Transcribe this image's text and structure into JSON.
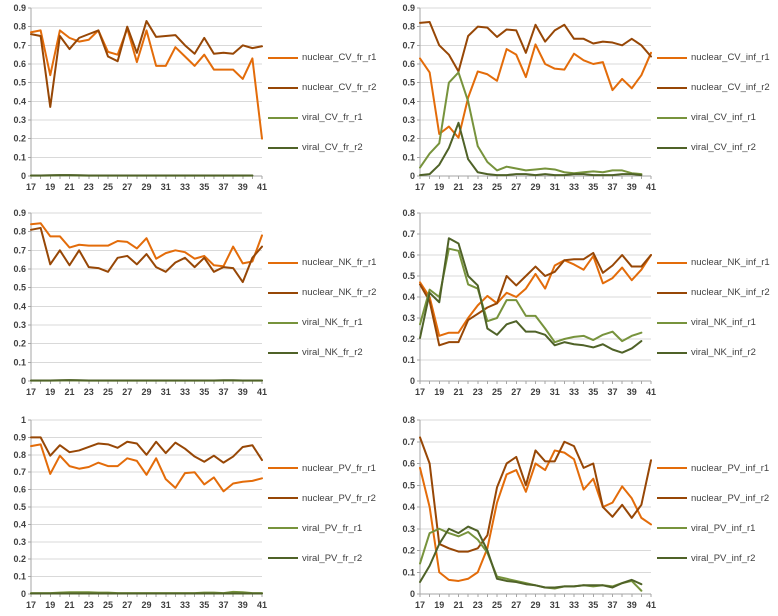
{
  "palette": {
    "nuclear_r1": "#E36C0A",
    "nuclear_r2": "#974706",
    "viral_r1": "#77933C",
    "viral_r2": "#4F6228"
  },
  "axis_style": {
    "grid_color": "#D9D9D9",
    "axis_color": "#A6A6A6",
    "label_color": "#3F3F3F"
  },
  "chart_data": [
    {
      "name": "CV_fr",
      "type": "line",
      "grid": true,
      "legend_position": "right",
      "x_start": 17,
      "x_labels": [
        "17",
        "19",
        "21",
        "23",
        "25",
        "27",
        "29",
        "31",
        "33",
        "35",
        "37",
        "39",
        "41"
      ],
      "ylim": [
        0,
        0.9
      ],
      "ytick_step": 0.1,
      "series": [
        {
          "name": "nuclear_CV_fr_r1",
          "color_key": "nuclear_r1",
          "values": [
            0.77,
            0.78,
            0.54,
            0.78,
            0.74,
            0.72,
            0.73,
            0.78,
            0.665,
            0.65,
            0.79,
            0.61,
            0.78,
            0.59,
            0.59,
            0.69,
            0.64,
            0.59,
            0.65,
            0.57,
            0.57,
            0.57,
            0.52,
            0.63,
            0.2
          ]
        },
        {
          "name": "nuclear_CV_fr_r2",
          "color_key": "nuclear_r2",
          "values": [
            0.76,
            0.75,
            0.37,
            0.75,
            0.68,
            0.74,
            0.76,
            0.78,
            0.64,
            0.615,
            0.8,
            0.66,
            0.83,
            0.745,
            0.75,
            0.755,
            0.7,
            0.655,
            0.74,
            0.655,
            0.66,
            0.655,
            0.7,
            0.685,
            0.695
          ]
        },
        {
          "name": "viral_CV_fr_r1",
          "color_key": "viral_r1",
          "values": [
            0.002,
            0.002,
            0.003,
            0.004,
            0.004,
            0.003,
            0.002,
            0.002,
            0.002,
            0.002,
            0.002,
            0.002,
            0.002,
            0.002,
            0.002,
            0.002,
            0.002,
            0.002,
            0.002,
            0.002,
            0.002,
            0.002,
            0.002,
            0.002
          ]
        },
        {
          "name": "viral_CV_fr_r2",
          "color_key": "viral_r2",
          "values": [
            0.003,
            0.003,
            0.004,
            0.005,
            0.005,
            0.004,
            0.003,
            0.003,
            0.003,
            0.003,
            0.003,
            0.003,
            0.003,
            0.003,
            0.003,
            0.003,
            0.003,
            0.003,
            0.003,
            0.003,
            0.003,
            0.003,
            0.003,
            0.003
          ]
        }
      ]
    },
    {
      "name": "CV_inf",
      "type": "line",
      "grid": true,
      "legend_position": "right",
      "x_start": 17,
      "x_labels": [
        "17",
        "19",
        "21",
        "23",
        "25",
        "27",
        "29",
        "31",
        "33",
        "35",
        "37",
        "39",
        "41"
      ],
      "ylim": [
        0,
        0.9
      ],
      "ytick_step": 0.1,
      "series": [
        {
          "name": "nuclear_CV_inf_r1",
          "color_key": "nuclear_r1",
          "values": [
            0.63,
            0.555,
            0.225,
            0.265,
            0.205,
            0.42,
            0.56,
            0.545,
            0.51,
            0.68,
            0.65,
            0.53,
            0.705,
            0.6,
            0.575,
            0.57,
            0.655,
            0.62,
            0.6,
            0.61,
            0.46,
            0.52,
            0.47,
            0.54,
            0.66
          ]
        },
        {
          "name": "nuclear_CV_inf_r2",
          "color_key": "nuclear_r2",
          "values": [
            0.82,
            0.825,
            0.7,
            0.65,
            0.56,
            0.75,
            0.8,
            0.795,
            0.745,
            0.785,
            0.78,
            0.66,
            0.81,
            0.72,
            0.78,
            0.81,
            0.735,
            0.735,
            0.71,
            0.72,
            0.715,
            0.7,
            0.735,
            0.7,
            0.64
          ]
        },
        {
          "name": "viral_CV_inf_r1",
          "color_key": "viral_r1",
          "values": [
            0.045,
            0.12,
            0.175,
            0.5,
            0.555,
            0.4,
            0.16,
            0.075,
            0.03,
            0.05,
            0.04,
            0.03,
            0.035,
            0.04,
            0.035,
            0.02,
            0.015,
            0.02,
            0.025,
            0.02,
            0.03,
            0.03,
            0.015,
            0.01
          ]
        },
        {
          "name": "viral_CV_inf_r2",
          "color_key": "viral_r2",
          "values": [
            0.005,
            0.01,
            0.06,
            0.15,
            0.285,
            0.09,
            0.02,
            0.01,
            0.005,
            0.005,
            0.01,
            0.01,
            0.005,
            0.01,
            0.005,
            0.005,
            0.01,
            0.01,
            0.005,
            0.005,
            0.005,
            0.01,
            0.01,
            0.005
          ]
        }
      ]
    },
    {
      "name": "NK_fr",
      "type": "line",
      "grid": true,
      "legend_position": "right",
      "x_start": 17,
      "x_labels": [
        "17",
        "19",
        "21",
        "23",
        "25",
        "27",
        "29",
        "31",
        "33",
        "35",
        "37",
        "39",
        "41"
      ],
      "ylim": [
        0,
        0.9
      ],
      "ytick_step": 0.1,
      "series": [
        {
          "name": "nuclear_NK_fr_r1",
          "color_key": "nuclear_r1",
          "values": [
            0.84,
            0.845,
            0.775,
            0.775,
            0.715,
            0.73,
            0.725,
            0.725,
            0.725,
            0.75,
            0.745,
            0.71,
            0.765,
            0.655,
            0.685,
            0.7,
            0.69,
            0.655,
            0.67,
            0.62,
            0.615,
            0.72,
            0.63,
            0.64,
            0.78
          ]
        },
        {
          "name": "nuclear_NK_fr_r2",
          "color_key": "nuclear_r2",
          "values": [
            0.81,
            0.82,
            0.625,
            0.7,
            0.62,
            0.7,
            0.61,
            0.605,
            0.585,
            0.66,
            0.67,
            0.625,
            0.68,
            0.61,
            0.585,
            0.635,
            0.66,
            0.61,
            0.66,
            0.585,
            0.61,
            0.605,
            0.53,
            0.66,
            0.72
          ]
        },
        {
          "name": "viral_NK_fr_r1",
          "color_key": "viral_r1",
          "values": [
            0.002,
            0.002,
            0.002,
            0.003,
            0.004,
            0.003,
            0.002,
            0.002,
            0.002,
            0.002,
            0.002,
            0.002,
            0.002,
            0.002,
            0.002,
            0.002,
            0.002,
            0.002,
            0.002,
            0.002,
            0.003,
            0.003,
            0.002,
            0.002,
            0.002
          ]
        },
        {
          "name": "viral_NK_fr_r2",
          "color_key": "viral_r2",
          "values": [
            0.003,
            0.003,
            0.003,
            0.004,
            0.005,
            0.004,
            0.003,
            0.003,
            0.003,
            0.003,
            0.003,
            0.003,
            0.003,
            0.003,
            0.003,
            0.003,
            0.003,
            0.003,
            0.003,
            0.003,
            0.004,
            0.004,
            0.003,
            0.003,
            0.003
          ]
        }
      ]
    },
    {
      "name": "NK_inf",
      "type": "line",
      "grid": true,
      "legend_position": "right",
      "x_start": 17,
      "x_labels": [
        "17",
        "19",
        "21",
        "23",
        "25",
        "27",
        "29",
        "31",
        "33",
        "35",
        "37",
        "39",
        "41"
      ],
      "ylim": [
        0,
        0.8
      ],
      "ytick_step": 0.1,
      "series": [
        {
          "name": "nuclear_NK_inf_r1",
          "color_key": "nuclear_r1",
          "values": [
            0.47,
            0.4,
            0.215,
            0.23,
            0.23,
            0.3,
            0.36,
            0.405,
            0.37,
            0.42,
            0.4,
            0.44,
            0.51,
            0.44,
            0.55,
            0.575,
            0.555,
            0.53,
            0.595,
            0.465,
            0.49,
            0.54,
            0.48,
            0.53,
            0.6
          ]
        },
        {
          "name": "nuclear_NK_inf_r2",
          "color_key": "nuclear_r2",
          "values": [
            0.46,
            0.38,
            0.17,
            0.185,
            0.185,
            0.29,
            0.32,
            0.35,
            0.37,
            0.5,
            0.455,
            0.5,
            0.545,
            0.5,
            0.52,
            0.575,
            0.58,
            0.58,
            0.61,
            0.515,
            0.55,
            0.6,
            0.545,
            0.545,
            0.6
          ]
        },
        {
          "name": "viral_NK_inf_r1",
          "color_key": "viral_r1",
          "values": [
            0.27,
            0.435,
            0.4,
            0.63,
            0.62,
            0.46,
            0.44,
            0.285,
            0.3,
            0.385,
            0.385,
            0.31,
            0.31,
            0.25,
            0.185,
            0.2,
            0.21,
            0.215,
            0.195,
            0.22,
            0.235,
            0.19,
            0.215,
            0.23
          ]
        },
        {
          "name": "viral_NK_inf_r2",
          "color_key": "viral_r2",
          "values": [
            0.205,
            0.42,
            0.375,
            0.68,
            0.655,
            0.5,
            0.455,
            0.25,
            0.22,
            0.27,
            0.285,
            0.235,
            0.235,
            0.22,
            0.17,
            0.185,
            0.175,
            0.17,
            0.16,
            0.175,
            0.15,
            0.135,
            0.155,
            0.19
          ]
        }
      ]
    },
    {
      "name": "PV_fr",
      "type": "line",
      "grid": true,
      "legend_position": "right",
      "x_start": 17,
      "x_labels": [
        "17",
        "19",
        "21",
        "23",
        "25",
        "27",
        "29",
        "31",
        "33",
        "35",
        "37",
        "39",
        "41"
      ],
      "ylim": [
        0,
        1
      ],
      "ytick_step": 0.1,
      "series": [
        {
          "name": "nuclear_PV_fr_r1",
          "color_key": "nuclear_r1",
          "values": [
            0.85,
            0.86,
            0.69,
            0.795,
            0.735,
            0.72,
            0.73,
            0.755,
            0.735,
            0.735,
            0.78,
            0.765,
            0.685,
            0.78,
            0.66,
            0.61,
            0.695,
            0.7,
            0.63,
            0.67,
            0.59,
            0.635,
            0.645,
            0.65,
            0.665
          ]
        },
        {
          "name": "nuclear_PV_fr_r2",
          "color_key": "nuclear_r2",
          "values": [
            0.9,
            0.9,
            0.795,
            0.855,
            0.815,
            0.825,
            0.845,
            0.865,
            0.86,
            0.84,
            0.875,
            0.865,
            0.8,
            0.875,
            0.81,
            0.87,
            0.835,
            0.79,
            0.76,
            0.795,
            0.755,
            0.79,
            0.845,
            0.855,
            0.77
          ]
        },
        {
          "name": "viral_PV_fr_r1",
          "color_key": "viral_r1",
          "values": [
            0.005,
            0.005,
            0.005,
            0.008,
            0.01,
            0.01,
            0.01,
            0.008,
            0.008,
            0.005,
            0.005,
            0.005,
            0.005,
            0.005,
            0.005,
            0.005,
            0.005,
            0.005,
            0.008,
            0.008,
            0.005,
            0.012,
            0.01,
            0.005,
            0.005
          ]
        },
        {
          "name": "viral_PV_fr_r2",
          "color_key": "viral_r2",
          "values": [
            0.003,
            0.003,
            0.003,
            0.003,
            0.003,
            0.003,
            0.003,
            0.003,
            0.003,
            0.003,
            0.003,
            0.003,
            0.003,
            0.003,
            0.003,
            0.003,
            0.003,
            0.003,
            0.003,
            0.003,
            0.003,
            0.003,
            0.003,
            0.003,
            0.003
          ]
        }
      ]
    },
    {
      "name": "PV_inf",
      "type": "line",
      "grid": true,
      "legend_position": "right",
      "x_start": 17,
      "x_labels": [
        "17",
        "19",
        "21",
        "23",
        "25",
        "27",
        "29",
        "31",
        "33",
        "35",
        "37",
        "39",
        "41"
      ],
      "ylim": [
        0,
        0.8
      ],
      "ytick_step": 0.1,
      "series": [
        {
          "name": "nuclear_PV_inf_r1",
          "color_key": "nuclear_r1",
          "values": [
            0.58,
            0.4,
            0.1,
            0.065,
            0.06,
            0.07,
            0.1,
            0.21,
            0.42,
            0.55,
            0.57,
            0.47,
            0.6,
            0.57,
            0.66,
            0.65,
            0.62,
            0.48,
            0.53,
            0.4,
            0.42,
            0.495,
            0.44,
            0.35,
            0.32
          ]
        },
        {
          "name": "nuclear_PV_inf_r2",
          "color_key": "nuclear_r2",
          "values": [
            0.72,
            0.6,
            0.23,
            0.21,
            0.195,
            0.195,
            0.21,
            0.27,
            0.49,
            0.6,
            0.63,
            0.5,
            0.66,
            0.61,
            0.61,
            0.7,
            0.68,
            0.58,
            0.6,
            0.4,
            0.355,
            0.41,
            0.35,
            0.41,
            0.615
          ]
        },
        {
          "name": "viral_PV_inf_r1",
          "color_key": "viral_r1",
          "values": [
            0.14,
            0.28,
            0.3,
            0.28,
            0.265,
            0.285,
            0.25,
            0.19,
            0.08,
            0.07,
            0.06,
            0.05,
            0.04,
            0.03,
            0.025,
            0.035,
            0.035,
            0.04,
            0.035,
            0.04,
            0.035,
            0.05,
            0.06,
            0.015
          ]
        },
        {
          "name": "viral_PV_inf_r2",
          "color_key": "viral_r2",
          "values": [
            0.055,
            0.13,
            0.23,
            0.3,
            0.28,
            0.31,
            0.29,
            0.2,
            0.07,
            0.06,
            0.055,
            0.045,
            0.04,
            0.03,
            0.03,
            0.035,
            0.035,
            0.04,
            0.04,
            0.04,
            0.03,
            0.05,
            0.065,
            0.045
          ]
        }
      ]
    }
  ]
}
